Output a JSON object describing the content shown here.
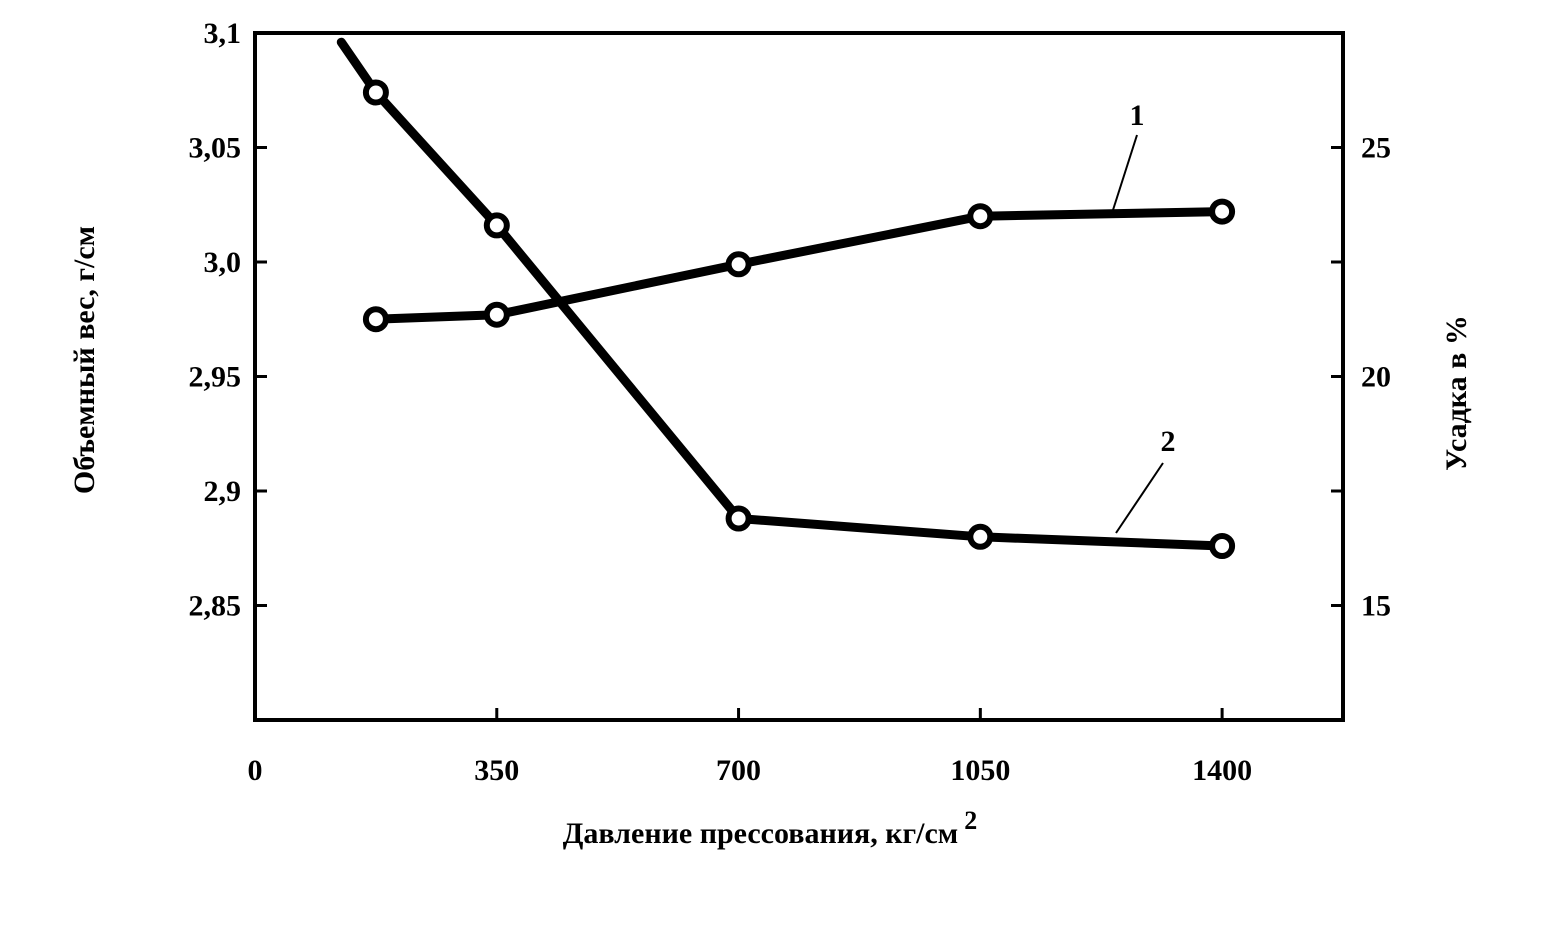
{
  "chart_data": {
    "type": "line",
    "title": "",
    "xlabel": "Давление прессования, кг/см",
    "xlabel_superscript": "2",
    "ylabel_left": "Объемный вес, г/см",
    "ylabel_right": "Усадка в %",
    "x_ticks": [
      "0",
      "350",
      "700",
      "1050",
      "1400"
    ],
    "x_tick_values": [
      0,
      350,
      700,
      1050,
      1400
    ],
    "xlim": [
      0,
      1575
    ],
    "y_left_ticks": [
      "3,1",
      "3,05",
      "3,0",
      "2,95",
      "2,9",
      "2,85"
    ],
    "y_left_tick_values": [
      3.1,
      3.05,
      3.0,
      2.95,
      2.9,
      2.85
    ],
    "y_left_lim": [
      2.8,
      3.1
    ],
    "y_right_ticks": [
      "25",
      "20",
      "15"
    ],
    "y_right_tick_values": [
      25,
      20,
      15
    ],
    "y_right_minor_values": [
      27.5,
      22.5,
      17.5,
      12.5
    ],
    "y_right_lim": [
      12.5,
      27.5
    ],
    "grid": false,
    "legend": "none",
    "series": [
      {
        "name": "1",
        "axis": "left",
        "line_start": [
          170,
          2.975
        ],
        "x": [
          175,
          350,
          700,
          1050,
          1400
        ],
        "y": [
          2.975,
          2.977,
          2.999,
          3.02,
          3.022
        ]
      },
      {
        "name": "2",
        "axis": "right",
        "line_start": [
          125,
          27.3
        ],
        "x": [
          175,
          350,
          700,
          1050,
          1400
        ],
        "y": [
          26.2,
          23.3,
          16.9,
          16.5,
          16.3
        ]
      }
    ],
    "colors": {
      "line": "#000000",
      "marker_fill": "#ffffff"
    }
  }
}
